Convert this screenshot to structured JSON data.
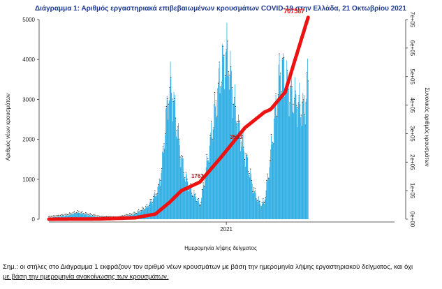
{
  "chart_data": {
    "type": "bar+line",
    "title": "Διάγραμμα 1: Αριθμός εργαστηριακά επιβεβαιωμένων κρουσμάτων COVID-19 στην Ελλάδα, 21 Οκτωβρίου 2021",
    "xlabel": "Ημερομηνία λήψης δείγματος",
    "ylabel_left": "Αριθμός νέων κρουσμάτων",
    "ylabel_right": "Συνολικός αριθμός κρουσμάτων",
    "x_tick_labels": [
      "2021"
    ],
    "x_range": [
      0,
      600
    ],
    "x_tick_positions": [
      308
    ],
    "ylim_left": [
      0,
      5000
    ],
    "yticks_left": [
      "0",
      "1000",
      "2000",
      "3000",
      "4000",
      "5000"
    ],
    "ylim_right": [
      0,
      700000
    ],
    "yticks_right": [
      "0e+00",
      "1e+05",
      "2e+05",
      "3e+05",
      "4e+05",
      "5e+05",
      "6e+05",
      "7e+05"
    ],
    "bar_color": "#1ea7e1",
    "line_color": "#ee1111",
    "label_color": "#9b1d1d",
    "daily_keypoints": [
      [
        0,
        40
      ],
      [
        30,
        90
      ],
      [
        50,
        160
      ],
      [
        70,
        100
      ],
      [
        90,
        40
      ],
      [
        120,
        30
      ],
      [
        150,
        130
      ],
      [
        170,
        290
      ],
      [
        180,
        480
      ],
      [
        190,
        750
      ],
      [
        196,
        1250
      ],
      [
        202,
        2300
      ],
      [
        207,
        3050
      ],
      [
        212,
        3320
      ],
      [
        217,
        2900
      ],
      [
        222,
        2350
      ],
      [
        228,
        1700
      ],
      [
        235,
        1150
      ],
      [
        242,
        850
      ],
      [
        250,
        630
      ],
      [
        258,
        480
      ],
      [
        262,
        330
      ],
      [
        268,
        780
      ],
      [
        274,
        1320
      ],
      [
        280,
        1900
      ],
      [
        286,
        2500
      ],
      [
        292,
        3050
      ],
      [
        298,
        3620
      ],
      [
        304,
        3960
      ],
      [
        309,
        4150
      ],
      [
        314,
        3750
      ],
      [
        320,
        3050
      ],
      [
        327,
        2450
      ],
      [
        334,
        2000
      ],
      [
        341,
        1600
      ],
      [
        348,
        1200
      ],
      [
        354,
        800
      ],
      [
        360,
        550
      ],
      [
        368,
        350
      ],
      [
        374,
        430
      ],
      [
        381,
        1100
      ],
      [
        388,
        2000
      ],
      [
        395,
        2900
      ],
      [
        401,
        3650
      ],
      [
        406,
        3750
      ],
      [
        411,
        3450
      ],
      [
        417,
        3200
      ],
      [
        423,
        3100
      ],
      [
        429,
        2950
      ],
      [
        435,
        2850
      ],
      [
        441,
        2750
      ],
      [
        446,
        2950
      ],
      [
        450,
        3550
      ]
    ],
    "cumulative_keypoints": [
      [
        0,
        0
      ],
      [
        90,
        1000
      ],
      [
        150,
        5000
      ],
      [
        185,
        18000
      ],
      [
        210,
        60000
      ],
      [
        230,
        100000
      ],
      [
        262,
        130000
      ],
      [
        300,
        220000
      ],
      [
        340,
        320000
      ],
      [
        374,
        375000
      ],
      [
        385,
        385000
      ],
      [
        410,
        445000
      ],
      [
        450,
        707587
      ]
    ],
    "annotations": [
      {
        "x": 450,
        "y": 707587,
        "text": "707587",
        "axis": "right",
        "color": "#ee1111"
      },
      {
        "x": 258,
        "y": 135000,
        "text": "1763",
        "axis": "right",
        "color": "#9b1d1d"
      },
      {
        "x": 325,
        "y": 272000,
        "text": "3533",
        "axis": "right",
        "color": "#9b1d1d"
      }
    ]
  },
  "note": {
    "line1": "Σημ.: οι στήλες στο Διάγραμμα 1 εκφράζουν τον αριθμό νέων κρουσμάτων με βάση την ημερομηνία λήψης εργαστηριακού δείγματος, και όχι",
    "line2": "με βάση την ημερομηνία ανακοίνωσης των κρουσμάτων."
  }
}
